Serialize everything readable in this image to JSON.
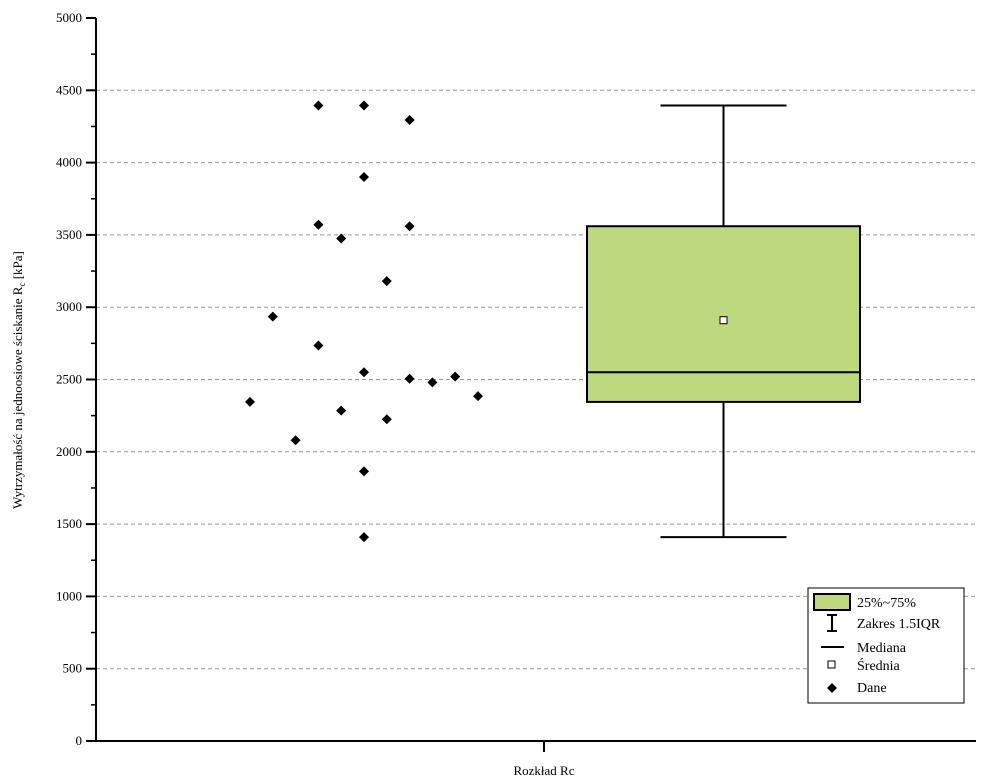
{
  "chart_data": {
    "type": "box",
    "xlabel": "Rozkład Rc",
    "ylabel_main": "Wytrzymałość na jednoosiowe ściskanie R",
    "ylabel_sub": "c",
    "ylabel_unit": " [kPa]",
    "ylim": [
      0,
      5000
    ],
    "y_ticks": [
      0,
      500,
      1000,
      1500,
      2000,
      2500,
      3000,
      3500,
      4000,
      4500,
      5000
    ],
    "grid": true,
    "box": {
      "q1": 2345,
      "median": 2550,
      "q3": 3560,
      "whisker_low": 1410,
      "whisker_high": 4395,
      "mean": 2910,
      "fill_color": "#bdd87d"
    },
    "points": [
      {
        "offset": -0.8,
        "y": 4395
      },
      {
        "offset": 0.0,
        "y": 4395
      },
      {
        "offset": 0.8,
        "y": 4295
      },
      {
        "offset": 0.0,
        "y": 3900
      },
      {
        "offset": -0.8,
        "y": 3570
      },
      {
        "offset": 0.8,
        "y": 3560
      },
      {
        "offset": -0.4,
        "y": 3475
      },
      {
        "offset": 0.4,
        "y": 3180
      },
      {
        "offset": -1.6,
        "y": 2935
      },
      {
        "offset": -0.8,
        "y": 2735
      },
      {
        "offset": 0.0,
        "y": 2550
      },
      {
        "offset": 0.8,
        "y": 2505
      },
      {
        "offset": 1.2,
        "y": 2480
      },
      {
        "offset": 1.6,
        "y": 2520
      },
      {
        "offset": 2.0,
        "y": 2385
      },
      {
        "offset": -2.0,
        "y": 2345
      },
      {
        "offset": -0.4,
        "y": 2285
      },
      {
        "offset": 0.4,
        "y": 2225
      },
      {
        "offset": -1.2,
        "y": 2080
      },
      {
        "offset": 0.0,
        "y": 1865
      },
      {
        "offset": 0.0,
        "y": 1410
      }
    ],
    "legend": {
      "position": "bottom-right",
      "items": [
        {
          "key": "box",
          "label": "25%~75%"
        },
        {
          "key": "whisker",
          "label": "Zakres 1.5IQR"
        },
        {
          "key": "median",
          "label": "Mediana"
        },
        {
          "key": "mean",
          "label": "Średnia"
        },
        {
          "key": "data",
          "label": "Dane"
        }
      ]
    }
  }
}
